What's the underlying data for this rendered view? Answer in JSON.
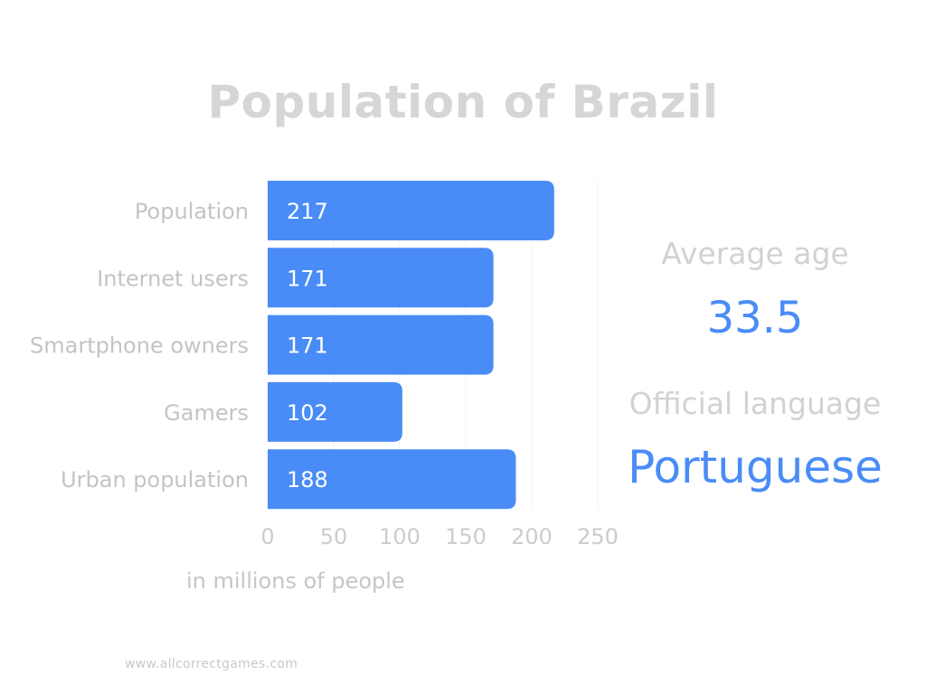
{
  "title": "Population of Brazil",
  "chart_data": {
    "type": "bar",
    "orientation": "horizontal",
    "categories": [
      "Population",
      "Internet users",
      "Smartphone owners",
      "Gamers",
      "Urban population"
    ],
    "values": [
      217,
      171,
      171,
      102,
      188
    ],
    "xlabel": "in millions of people",
    "xlim": [
      0,
      250
    ],
    "xticks": [
      0,
      50,
      100,
      150,
      200,
      250
    ],
    "grid": true,
    "bar_color": "#4a8cf7"
  },
  "side_panel": {
    "average_age_label": "Average age",
    "average_age_value": "33.5",
    "language_label": "Official language",
    "language_value": "Portuguese",
    "accent_color": "#4a8cf7"
  },
  "footer": "www.allcorrectgames.com"
}
